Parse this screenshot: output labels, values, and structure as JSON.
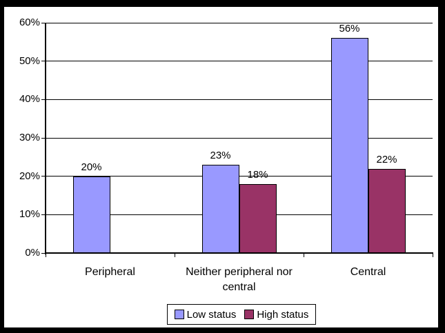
{
  "chart_data": {
    "type": "bar",
    "title": "",
    "categories": [
      "Peripheral",
      "Neither peripheral nor central",
      "Central"
    ],
    "series": [
      {
        "name": "Low status",
        "color": "#9999ff",
        "values": [
          20,
          23,
          56
        ],
        "labels": [
          "20%",
          "23%",
          "56%"
        ]
      },
      {
        "name": "High status",
        "color": "#993366",
        "values": [
          0,
          18,
          22
        ],
        "labels": [
          "",
          "18%",
          "22%"
        ]
      }
    ],
    "y_axis": {
      "min": 0,
      "max": 60,
      "step": 10,
      "tick_labels": [
        "0%",
        "10%",
        "20%",
        "30%",
        "40%",
        "50%",
        "60%"
      ]
    },
    "xlabel": "",
    "ylabel": "",
    "grid": true,
    "legend_position": "bottom",
    "colors": {
      "frame": "#000000",
      "axis": "#000000",
      "gridline": "#000000",
      "bar_border": "#000000",
      "plot_background": "#ffffff"
    }
  }
}
